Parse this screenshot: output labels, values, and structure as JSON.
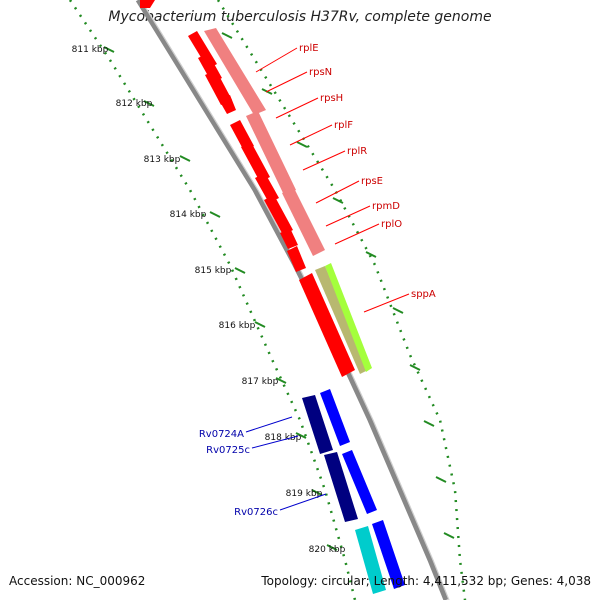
{
  "header": {
    "title": "Mycobacterium tuberculosis H37Rv, complete genome"
  },
  "footer": {
    "accession": "Accession: NC_000962",
    "summary": "Topology: circular; Length: 4,411,532 bp; Genes: 4,038"
  },
  "scale": {
    "ticks": [
      "811 kbp",
      "812 kbp",
      "813 kbp",
      "814 kbp",
      "815 kbp",
      "816 kbp",
      "817 kbp",
      "818 kbp",
      "819 kbp",
      "820 kbp"
    ]
  },
  "genes": {
    "red_labels": [
      "rplE",
      "rpsN",
      "rpsH",
      "rplF",
      "rplR",
      "rpsE",
      "rpmD",
      "rplO",
      "sppA"
    ],
    "blue_labels": [
      "Rv0724A",
      "Rv0725c",
      "Rv0726c"
    ]
  },
  "colors": {
    "red_feature": "#ff0000",
    "pink_feature": "#f08080",
    "lime_feature": "#a4ff3c",
    "olive_feature": "#b8b870",
    "navy_feature": "#000080",
    "blue_feature": "#0000ff",
    "cyan_feature": "#00cccc",
    "backbone": "#888888",
    "tick": "#228b22",
    "red_label": "#cc0000",
    "blue_label": "#0000aa"
  }
}
